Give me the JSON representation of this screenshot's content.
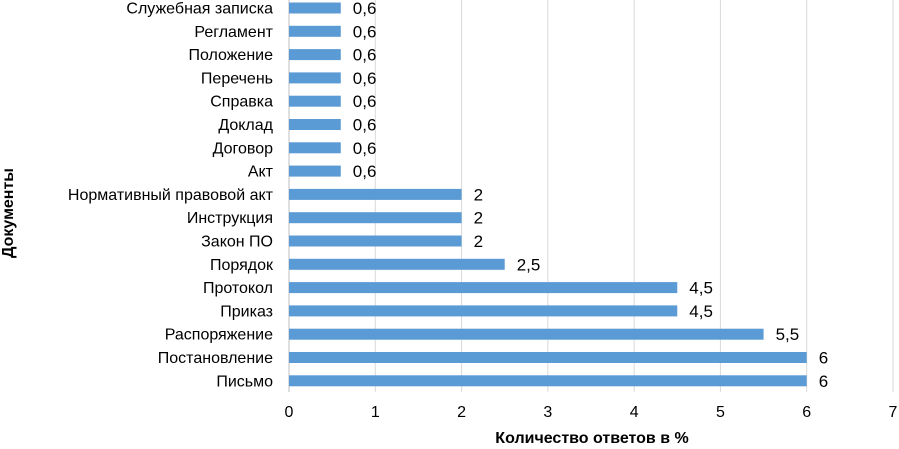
{
  "chart_data": {
    "type": "bar",
    "orientation": "horizontal",
    "categories": [
      "Служебная записка",
      "Регламент",
      "Положение",
      "Перечень",
      "Справка",
      "Доклад",
      "Договор",
      "Акт",
      "Нормативный правовой акт",
      "Инструкция",
      "Закон ПО",
      "Порядок",
      "Протокол",
      "Приказ",
      "Распоряжение",
      "Постановление",
      "Письмо"
    ],
    "values": [
      0.6,
      0.6,
      0.6,
      0.6,
      0.6,
      0.6,
      0.6,
      0.6,
      2,
      2,
      2,
      2.5,
      4.5,
      4.5,
      5.5,
      6,
      6
    ],
    "data_labels": [
      "0,6",
      "0,6",
      "0,6",
      "0,6",
      "0,6",
      "0,6",
      "0,6",
      "0,6",
      "2",
      "2",
      "2",
      "2,5",
      "4,5",
      "4,5",
      "5,5",
      "6",
      "6"
    ],
    "xlabel": "Количество ответов в %",
    "ylabel": "Документы",
    "xlim": [
      0,
      7
    ],
    "x_ticks": [
      "0",
      "1",
      "2",
      "3",
      "4",
      "5",
      "6",
      "7"
    ],
    "grid": "vertical",
    "legend": "none",
    "bar_color": "#5b9bd5"
  }
}
